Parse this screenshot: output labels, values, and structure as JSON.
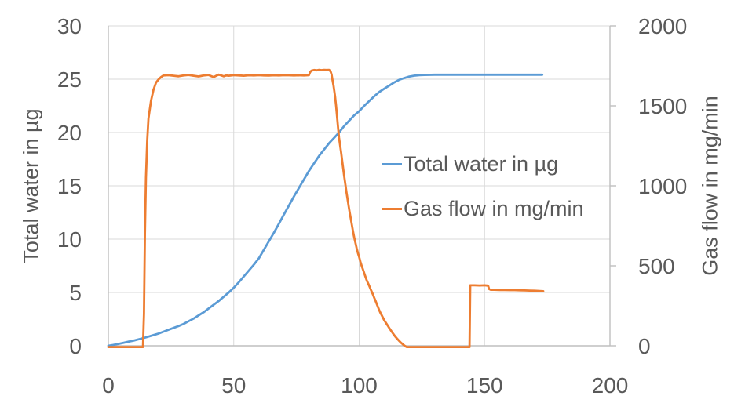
{
  "chart_data": {
    "type": "line",
    "title": "",
    "grid": true,
    "legend_position": "inside-center-right",
    "x_axis": {
      "label": "",
      "min": 0,
      "max": 200,
      "ticks": [
        0,
        50,
        100,
        150,
        200
      ],
      "gridlines": [
        50,
        100,
        150
      ]
    },
    "y_axis_left": {
      "label": "Total water in µg",
      "min": 0,
      "max": 30,
      "ticks": [
        0,
        5,
        10,
        15,
        20,
        25,
        30
      ]
    },
    "y_axis_right": {
      "label": "Gas flow in mg/min",
      "min": 0,
      "max": 2000,
      "ticks": [
        0,
        500,
        1000,
        1500,
        2000
      ]
    },
    "series": [
      {
        "name": "Total water in µg",
        "axis": "left",
        "color": "#5B9BD5",
        "points": [
          [
            0,
            0
          ],
          [
            2,
            0.08
          ],
          [
            4,
            0.18
          ],
          [
            6,
            0.28
          ],
          [
            8,
            0.38
          ],
          [
            10,
            0.48
          ],
          [
            12,
            0.6
          ],
          [
            14,
            0.72
          ],
          [
            16,
            0.86
          ],
          [
            18,
            1.0
          ],
          [
            20,
            1.15
          ],
          [
            22,
            1.32
          ],
          [
            24,
            1.5
          ],
          [
            26,
            1.68
          ],
          [
            28,
            1.85
          ],
          [
            30,
            2.05
          ],
          [
            32,
            2.3
          ],
          [
            34,
            2.55
          ],
          [
            36,
            2.85
          ],
          [
            38,
            3.15
          ],
          [
            40,
            3.5
          ],
          [
            42,
            3.85
          ],
          [
            44,
            4.2
          ],
          [
            46,
            4.6
          ],
          [
            48,
            5.0
          ],
          [
            50,
            5.45
          ],
          [
            52,
            5.95
          ],
          [
            54,
            6.5
          ],
          [
            56,
            7.05
          ],
          [
            58,
            7.6
          ],
          [
            60,
            8.2
          ],
          [
            62,
            9.0
          ],
          [
            64,
            9.8
          ],
          [
            66,
            10.6
          ],
          [
            68,
            11.45
          ],
          [
            70,
            12.3
          ],
          [
            72,
            13.15
          ],
          [
            74,
            14.0
          ],
          [
            76,
            14.8
          ],
          [
            78,
            15.6
          ],
          [
            80,
            16.4
          ],
          [
            82,
            17.1
          ],
          [
            84,
            17.8
          ],
          [
            86,
            18.4
          ],
          [
            88,
            19.0
          ],
          [
            90,
            19.5
          ],
          [
            92,
            20.0
          ],
          [
            94,
            20.6
          ],
          [
            96,
            21.1
          ],
          [
            98,
            21.6
          ],
          [
            100,
            22.0
          ],
          [
            102,
            22.5
          ],
          [
            104,
            22.95
          ],
          [
            106,
            23.4
          ],
          [
            108,
            23.8
          ],
          [
            110,
            24.1
          ],
          [
            112,
            24.4
          ],
          [
            114,
            24.7
          ],
          [
            116,
            24.95
          ],
          [
            118,
            25.1
          ],
          [
            120,
            25.25
          ],
          [
            122,
            25.33
          ],
          [
            124,
            25.38
          ],
          [
            126,
            25.4
          ],
          [
            130,
            25.42
          ],
          [
            140,
            25.42
          ],
          [
            150,
            25.42
          ],
          [
            160,
            25.42
          ],
          [
            173,
            25.42
          ]
        ]
      },
      {
        "name": "Gas flow in mg/min",
        "axis": "right",
        "color": "#ED7D31",
        "points": [
          [
            0,
            -8
          ],
          [
            13.8,
            -8
          ],
          [
            14.2,
            200
          ],
          [
            14.6,
            700
          ],
          [
            15,
            1050
          ],
          [
            15.5,
            1280
          ],
          [
            16,
            1420
          ],
          [
            17,
            1530
          ],
          [
            18,
            1600
          ],
          [
            19,
            1645
          ],
          [
            20,
            1665
          ],
          [
            21,
            1680
          ],
          [
            22,
            1690
          ],
          [
            24,
            1692
          ],
          [
            26,
            1688
          ],
          [
            28,
            1685
          ],
          [
            30,
            1690
          ],
          [
            32,
            1693
          ],
          [
            34,
            1688
          ],
          [
            36,
            1684
          ],
          [
            38,
            1690
          ],
          [
            40,
            1693
          ],
          [
            41,
            1686
          ],
          [
            42,
            1680
          ],
          [
            43,
            1688
          ],
          [
            44,
            1695
          ],
          [
            45,
            1690
          ],
          [
            46,
            1685
          ],
          [
            47,
            1690
          ],
          [
            48,
            1688
          ],
          [
            50,
            1692
          ],
          [
            52,
            1690
          ],
          [
            54,
            1688
          ],
          [
            56,
            1691
          ],
          [
            58,
            1690
          ],
          [
            60,
            1692
          ],
          [
            62,
            1690
          ],
          [
            64,
            1689
          ],
          [
            66,
            1691
          ],
          [
            68,
            1690
          ],
          [
            70,
            1692
          ],
          [
            72,
            1691
          ],
          [
            74,
            1690
          ],
          [
            76,
            1691
          ],
          [
            78,
            1690
          ],
          [
            80,
            1692
          ],
          [
            80.4,
            1710
          ],
          [
            81,
            1720
          ],
          [
            82,
            1724
          ],
          [
            83,
            1722
          ],
          [
            84,
            1725
          ],
          [
            85,
            1723
          ],
          [
            86,
            1725
          ],
          [
            87,
            1724
          ],
          [
            88,
            1725
          ],
          [
            88.6,
            1715
          ],
          [
            89,
            1695
          ],
          [
            89.4,
            1660
          ],
          [
            89.8,
            1625
          ],
          [
            90.4,
            1560
          ],
          [
            90.8,
            1500
          ],
          [
            91.2,
            1430
          ],
          [
            91.6,
            1360
          ],
          [
            92,
            1300
          ],
          [
            92.4,
            1255
          ],
          [
            92.8,
            1210
          ],
          [
            93.2,
            1160
          ],
          [
            93.6,
            1110
          ],
          [
            94,
            1065
          ],
          [
            94.5,
            1010
          ],
          [
            95,
            955
          ],
          [
            95.5,
            905
          ],
          [
            96,
            855
          ],
          [
            96.5,
            810
          ],
          [
            97,
            765
          ],
          [
            97.5,
            720
          ],
          [
            98,
            680
          ],
          [
            98.5,
            645
          ],
          [
            99,
            610
          ],
          [
            99.5,
            580
          ],
          [
            100,
            555
          ],
          [
            100.5,
            525
          ],
          [
            101,
            500
          ],
          [
            101.5,
            478
          ],
          [
            102,
            455
          ],
          [
            102.5,
            432
          ],
          [
            103,
            410
          ],
          [
            103.5,
            392
          ],
          [
            104,
            375
          ],
          [
            104.5,
            356
          ],
          [
            105,
            338
          ],
          [
            105.5,
            320
          ],
          [
            106,
            300
          ],
          [
            106.5,
            282
          ],
          [
            107,
            262
          ],
          [
            107.5,
            242
          ],
          [
            108,
            222
          ],
          [
            108.5,
            205
          ],
          [
            109,
            190
          ],
          [
            109.5,
            175
          ],
          [
            110,
            160
          ],
          [
            110.5,
            148
          ],
          [
            111,
            136
          ],
          [
            111.5,
            124
          ],
          [
            112,
            112
          ],
          [
            112.5,
            100
          ],
          [
            113,
            88
          ],
          [
            113.5,
            77
          ],
          [
            114,
            66
          ],
          [
            114.5,
            56
          ],
          [
            115,
            47
          ],
          [
            115.5,
            38
          ],
          [
            116,
            30
          ],
          [
            116.5,
            22
          ],
          [
            117,
            15
          ],
          [
            117.5,
            8
          ],
          [
            118,
            2
          ],
          [
            118.5,
            -4
          ],
          [
            119,
            -8
          ],
          [
            144,
            -8
          ],
          [
            144.3,
            378
          ],
          [
            146,
            378
          ],
          [
            148,
            377
          ],
          [
            150,
            378
          ],
          [
            151.4,
            376
          ],
          [
            151.8,
            355
          ],
          [
            152.5,
            350
          ],
          [
            154,
            350
          ],
          [
            156,
            349
          ],
          [
            158,
            349
          ],
          [
            160,
            348
          ],
          [
            162,
            348
          ],
          [
            164,
            347
          ],
          [
            166,
            346
          ],
          [
            168,
            345
          ],
          [
            170,
            344
          ],
          [
            172,
            342
          ],
          [
            173.4,
            341
          ]
        ]
      }
    ]
  },
  "colors": {
    "background": "#ffffff",
    "gridline": "#d9d9d9",
    "axis_line": "#bfbfbf",
    "text": "#595959",
    "series_blue": "#5B9BD5",
    "series_orange": "#ED7D31"
  }
}
